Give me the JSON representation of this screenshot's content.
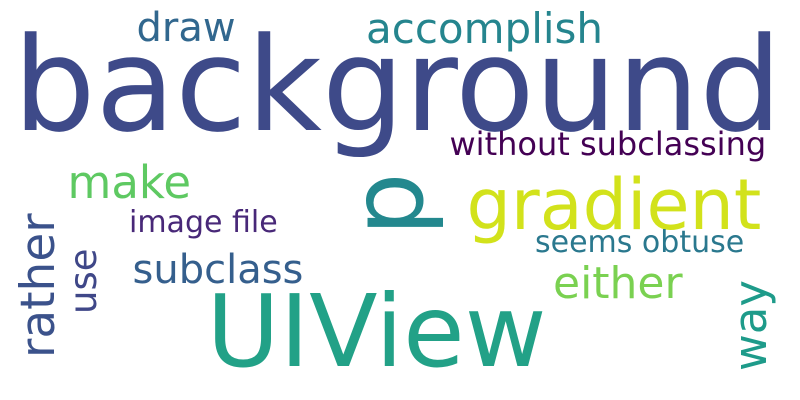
{
  "words": [
    {
      "text": "background",
      "color": "#3e4a89",
      "rotated": false
    },
    {
      "text": "UIView",
      "color": "#22a187",
      "rotated": false
    },
    {
      "text": "p",
      "color": "#23888e",
      "rotated": true
    },
    {
      "text": "gradient",
      "color": "#d2e21b",
      "rotated": false
    },
    {
      "text": "accomplish",
      "color": "#25858e",
      "rotated": false
    },
    {
      "text": "draw",
      "color": "#31678e",
      "rotated": false
    },
    {
      "text": "make",
      "color": "#5ec962",
      "rotated": false
    },
    {
      "text": "rather",
      "color": "#3b528b",
      "rotated": true
    },
    {
      "text": "use",
      "color": "#3f4788",
      "rotated": true
    },
    {
      "text": "subclass",
      "color": "#355f8d",
      "rotated": false
    },
    {
      "text": "either",
      "color": "#7ad151",
      "rotated": false
    },
    {
      "text": "way",
      "color": "#1e9b8a",
      "rotated": true
    },
    {
      "text": "without subclassing",
      "color": "#440154",
      "rotated": false
    },
    {
      "text": "image file",
      "color": "#482878",
      "rotated": false
    },
    {
      "text": "seems obtuse",
      "color": "#2a788e",
      "rotated": false
    }
  ]
}
